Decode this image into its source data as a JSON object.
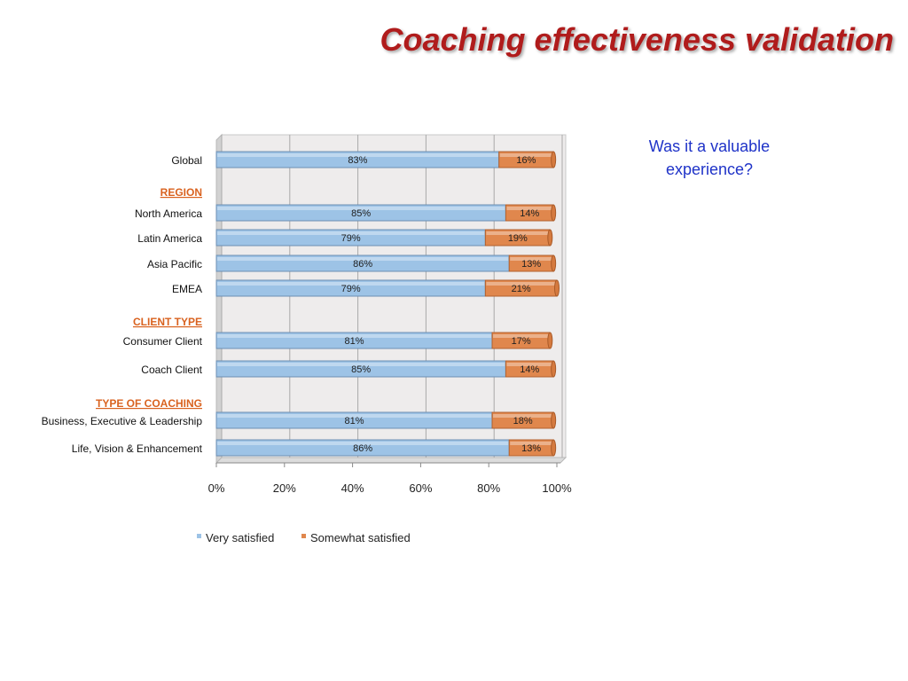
{
  "slide": {
    "title": "Coaching effectiveness validation",
    "question": "Was it a valuable experience?"
  },
  "colors": {
    "title": "#b01c1c",
    "question": "#1f33c8",
    "very_satisfied": "#9dc3e6",
    "somewhat_satisfied": "#e0874d",
    "section_header": "#d9621f"
  },
  "chart_data": {
    "type": "bar",
    "orientation": "horizontal",
    "stacked": true,
    "xlim": [
      0,
      100
    ],
    "x_ticks": [
      "0%",
      "20%",
      "40%",
      "60%",
      "80%",
      "100%"
    ],
    "grid": true,
    "legend_position": "bottom",
    "rows": [
      {
        "kind": "category",
        "label": "Global",
        "values": [
          83,
          16
        ]
      },
      {
        "kind": "header",
        "label": "REGION"
      },
      {
        "kind": "category",
        "label": "North America",
        "values": [
          85,
          14
        ]
      },
      {
        "kind": "category",
        "label": "Latin America",
        "values": [
          79,
          19
        ]
      },
      {
        "kind": "category",
        "label": "Asia Pacific",
        "values": [
          86,
          13
        ]
      },
      {
        "kind": "category",
        "label": "EMEA",
        "values": [
          79,
          21
        ]
      },
      {
        "kind": "header",
        "label": "CLIENT TYPE"
      },
      {
        "kind": "category",
        "label": "Consumer Client",
        "values": [
          81,
          17
        ]
      },
      {
        "kind": "category",
        "label": "Coach Client",
        "values": [
          85,
          14
        ]
      },
      {
        "kind": "header",
        "label": "TYPE OF COACHING"
      },
      {
        "kind": "category",
        "label": "Business, Executive & Leadership",
        "values": [
          81,
          18
        ]
      },
      {
        "kind": "category",
        "label": "Life, Vision & Enhancement",
        "values": [
          86,
          13
        ]
      }
    ],
    "series": [
      {
        "name": "Very satisfied"
      },
      {
        "name": "Somewhat satisfied"
      }
    ]
  }
}
